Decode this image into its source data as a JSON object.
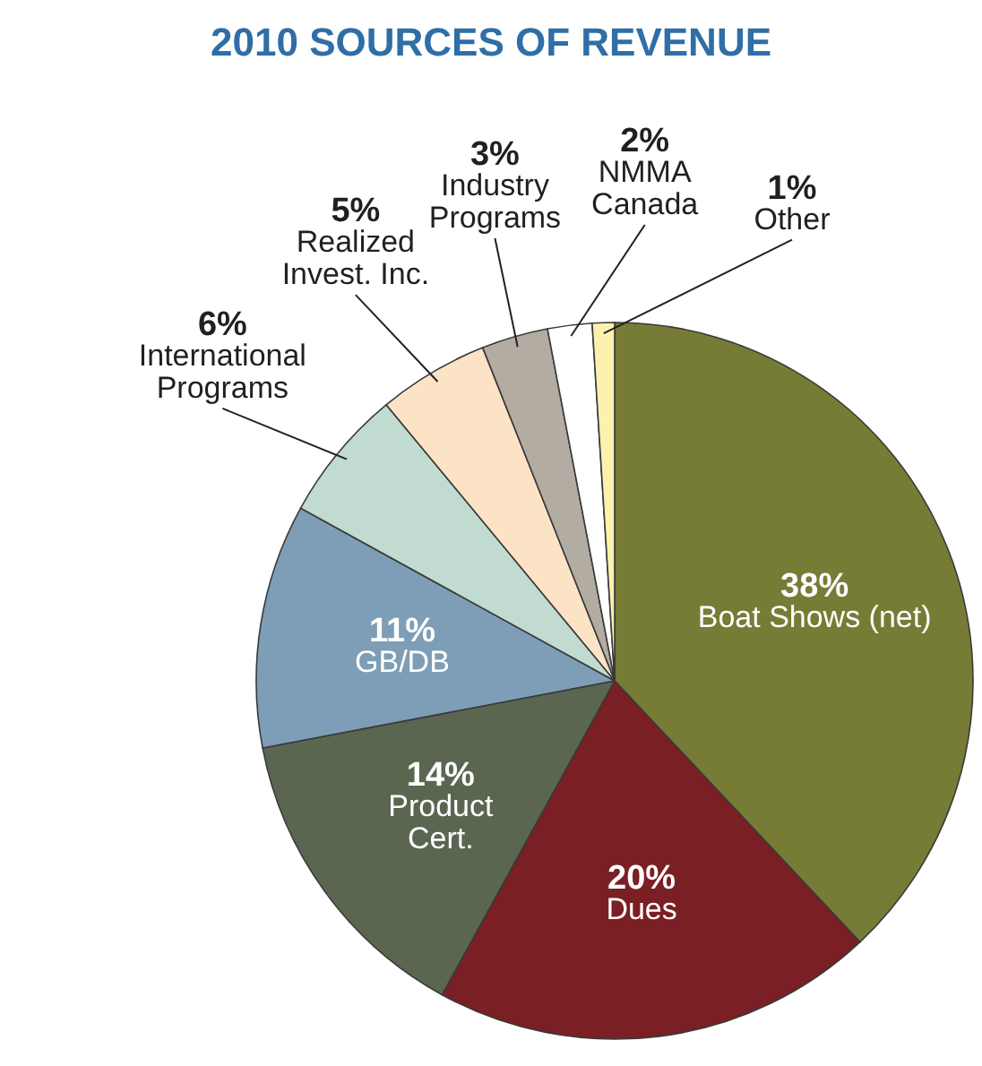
{
  "chart_data": {
    "type": "pie",
    "title": "2010 SOURCES OF REVENUE",
    "categories": [
      "Boat Shows (net)",
      "Dues",
      "Product Cert.",
      "GB/DB",
      "International Programs",
      "Realized Invest. Inc.",
      "Industry Programs",
      "NMMA Canada",
      "Other"
    ],
    "values": [
      38,
      20,
      14,
      11,
      6,
      5,
      3,
      2,
      1
    ],
    "colors": [
      "#767c35",
      "#7a1f23",
      "#5b6651",
      "#7d9eb6",
      "#c2dbd1",
      "#fde3c5",
      "#b2aca3",
      "#ffffff",
      "#fdf1b0"
    ],
    "data_labels": true,
    "value_labels": [
      "38%",
      "20%",
      "14%",
      "11%",
      "6%",
      "5%",
      "3%",
      "2%",
      "1%"
    ],
    "legend": false
  }
}
